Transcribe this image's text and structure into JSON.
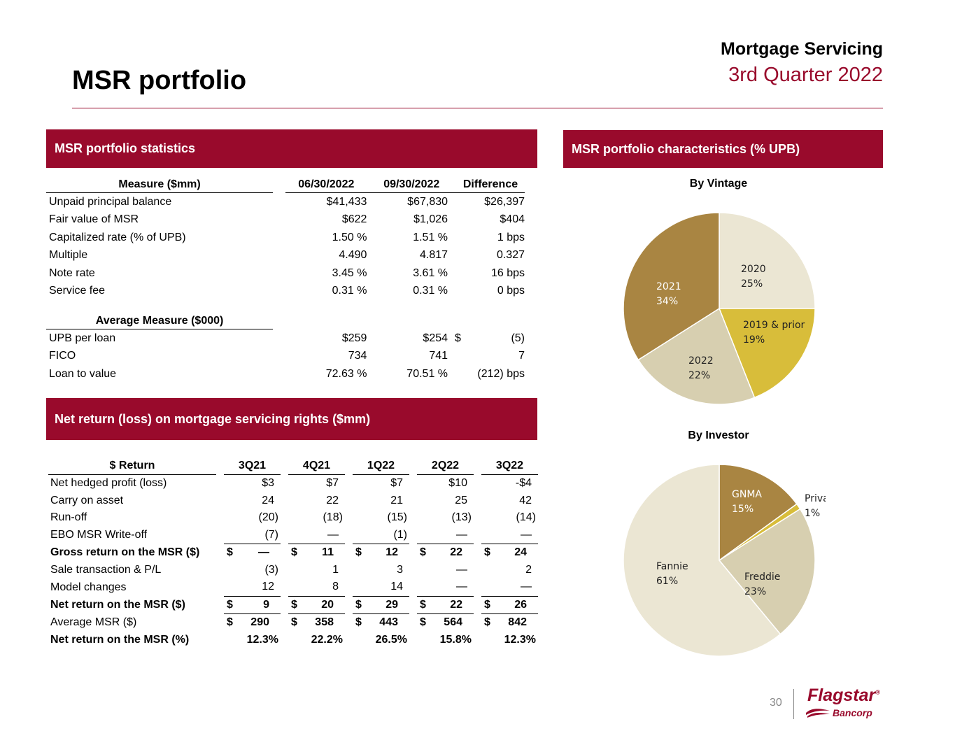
{
  "header": {
    "section": "Mortgage Servicing",
    "period": "3rd Quarter 2022",
    "title": "MSR portfolio"
  },
  "stats_panel": {
    "heading": "MSR portfolio statistics",
    "columns": [
      "Measure ($mm)",
      "06/30/2022",
      "09/30/2022",
      "Difference"
    ],
    "rows": [
      {
        "label": "Unpaid principal balance",
        "v1": "$41,433",
        "v2": "$67,830",
        "diff": "$26,397"
      },
      {
        "label": "Fair value of MSR",
        "v1": "$622",
        "v2": "$1,026",
        "diff": "$404"
      },
      {
        "label": "Capitalized rate (% of UPB)",
        "v1": "1.50 %",
        "v2": "1.51 %",
        "diff": "1 bps"
      },
      {
        "label": "Multiple",
        "v1": "4.490",
        "v2": "4.817",
        "diff": "0.327"
      },
      {
        "label": "Note rate",
        "v1": "3.45 %",
        "v2": "3.61 %",
        "diff": "16 bps"
      },
      {
        "label": "Service fee",
        "v1": "0.31 %",
        "v2": "0.31 %",
        "diff": "0 bps"
      }
    ],
    "avg_heading": "Average Measure ($000)",
    "avg_rows": [
      {
        "label": "UPB per loan",
        "v1": "$259",
        "v2": "$254",
        "diff_sign": "$",
        "diff": "(5)"
      },
      {
        "label": "FICO",
        "v1": "734",
        "v2": "741",
        "diff_sign": "",
        "diff": "7"
      },
      {
        "label": "Loan to value",
        "v1": "72.63 %",
        "v2": "70.51 %",
        "diff_sign": "",
        "diff": "(212) bps"
      }
    ]
  },
  "return_panel": {
    "heading": "Net return (loss) on mortgage servicing rights ($mm)",
    "columns": [
      "$ Return",
      "3Q21",
      "4Q21",
      "1Q22",
      "2Q22",
      "3Q22"
    ],
    "rows": [
      {
        "label": "Net hedged profit (loss)",
        "bold": false,
        "dollar": false,
        "vals": [
          "$3",
          "$7",
          "$7",
          "$10",
          "-$4"
        ]
      },
      {
        "label": "Carry on asset",
        "bold": false,
        "dollar": false,
        "vals": [
          "24",
          "22",
          "21",
          "25",
          "42"
        ]
      },
      {
        "label": "Run-off",
        "bold": false,
        "dollar": false,
        "vals": [
          "(20)",
          "(18)",
          "(15)",
          "(13)",
          "(14)"
        ]
      },
      {
        "label": "EBO MSR Write-off",
        "bold": false,
        "dollar": false,
        "underline": true,
        "vals": [
          "(7)",
          "—",
          "(1)",
          "—",
          "—"
        ]
      },
      {
        "label": "Gross return on the MSR ($)",
        "bold": true,
        "dollar": true,
        "vals": [
          "—",
          "11",
          "12",
          "22",
          "24"
        ]
      },
      {
        "label": "Sale transaction & P/L",
        "bold": false,
        "dollar": false,
        "vals": [
          "(3)",
          "1",
          "3",
          "—",
          "2"
        ]
      },
      {
        "label": "Model changes",
        "bold": false,
        "dollar": false,
        "underline": true,
        "vals": [
          "12",
          "8",
          "14",
          "—",
          "—"
        ]
      },
      {
        "label": "Net return on the MSR ($)",
        "bold": true,
        "dollar": true,
        "underline": true,
        "vals": [
          "9",
          "20",
          "29",
          "22",
          "26"
        ]
      },
      {
        "label": "Average MSR ($)",
        "bold": false,
        "dollar": true,
        "boldvals": true,
        "vals": [
          "290",
          "358",
          "443",
          "564",
          "842"
        ]
      },
      {
        "label": "Net return on the MSR (%)",
        "bold": true,
        "dollar": false,
        "vals": [
          "12.3%",
          "22.2%",
          "26.5%",
          "15.8%",
          "12.3%"
        ]
      }
    ],
    "dollar_sign": "$"
  },
  "characteristics_panel": {
    "heading": "MSR portfolio characteristics (% UPB)"
  },
  "chart_data": [
    {
      "type": "pie",
      "title": "By Vintage",
      "slices": [
        {
          "label": "2020",
          "value": 25,
          "pct": "25%",
          "color": "#ebe6d3"
        },
        {
          "label": "2019 & prior",
          "value": 19,
          "pct": "19%",
          "color": "#d8bd3a"
        },
        {
          "label": "2022",
          "value": 22,
          "pct": "22%",
          "color": "#d7cfb0"
        },
        {
          "label": "2021",
          "value": 34,
          "pct": "34%",
          "color": "#a98542"
        }
      ]
    },
    {
      "type": "pie",
      "title": "By Investor",
      "slices": [
        {
          "label": "GNMA",
          "value": 15,
          "pct": "15%",
          "color": "#a98542"
        },
        {
          "label": "Private",
          "value": 1,
          "pct": "1%",
          "color": "#d8bd3a"
        },
        {
          "label": "Freddie",
          "value": 23,
          "pct": "23%",
          "color": "#d7cfb0"
        },
        {
          "label": "Fannie",
          "value": 61,
          "pct": "61%",
          "color": "#ebe6d3"
        }
      ]
    }
  ],
  "footer": {
    "page_number": "30",
    "logo_brand": "Flagstar",
    "logo_sub": "Bancorp",
    "logo_mark": "®"
  }
}
